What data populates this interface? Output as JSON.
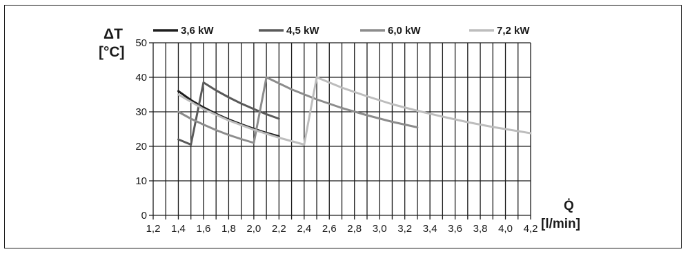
{
  "chart_data": {
    "type": "line",
    "ylabel_line1": "ΔT",
    "ylabel_line2": "[°C]",
    "xlabel_line1": "Q̇",
    "xlabel_line2": "[l/min]",
    "xlim": [
      1.2,
      4.2
    ],
    "ylim": [
      0,
      50
    ],
    "x_ticks": [
      "1,2",
      "1,4",
      "1,6",
      "1,8",
      "2,0",
      "2,2",
      "2,4",
      "2,6",
      "2,8",
      "3,0",
      "3,2",
      "3,4",
      "3,6",
      "3,8",
      "4,0",
      "4,2"
    ],
    "y_ticks": [
      "0",
      "10",
      "20",
      "30",
      "40",
      "50"
    ],
    "grid": true,
    "legend_position": "top",
    "series": [
      {
        "name": "3,6 kW",
        "color": "#1e1e1e",
        "points": [
          [
            1.4,
            36.0
          ],
          [
            1.5,
            33.4
          ],
          [
            1.6,
            31.3
          ],
          [
            1.7,
            29.4
          ],
          [
            1.8,
            27.8
          ],
          [
            1.9,
            26.4
          ],
          [
            2.0,
            25.1
          ],
          [
            2.1,
            23.9
          ],
          [
            2.2,
            22.9
          ]
        ]
      },
      {
        "name": "4,5 kW",
        "color": "#5a5a5a",
        "points": [
          [
            1.4,
            22.0
          ],
          [
            1.5,
            20.5
          ],
          [
            1.6,
            38.5
          ],
          [
            1.7,
            36.2
          ],
          [
            1.8,
            34.2
          ],
          [
            1.9,
            32.4
          ],
          [
            2.0,
            30.8
          ],
          [
            2.1,
            29.3
          ],
          [
            2.2,
            28.0
          ]
        ]
      },
      {
        "name": "6,0 kW",
        "color": "#8c8c8c",
        "points": [
          [
            1.4,
            30.0
          ],
          [
            1.5,
            28.0
          ],
          [
            1.6,
            26.3
          ],
          [
            1.7,
            24.7
          ],
          [
            1.8,
            23.3
          ],
          [
            1.9,
            22.1
          ],
          [
            2.0,
            21.0
          ],
          [
            2.1,
            40.0
          ],
          [
            2.3,
            36.5
          ],
          [
            2.5,
            33.6
          ],
          [
            2.7,
            31.1
          ],
          [
            2.9,
            29.0
          ],
          [
            3.1,
            27.1
          ],
          [
            3.3,
            25.5
          ]
        ]
      },
      {
        "name": "7,2 kW",
        "color": "#bdbdbd",
        "points": [
          [
            1.4,
            35.0
          ],
          [
            1.6,
            30.8
          ],
          [
            1.8,
            27.5
          ],
          [
            2.0,
            24.8
          ],
          [
            2.2,
            22.5
          ],
          [
            2.4,
            20.5
          ],
          [
            2.5,
            40.0
          ],
          [
            2.7,
            37.0
          ],
          [
            2.9,
            34.5
          ],
          [
            3.1,
            32.2
          ],
          [
            3.3,
            30.3
          ],
          [
            3.5,
            28.6
          ],
          [
            3.7,
            27.0
          ],
          [
            3.9,
            25.6
          ],
          [
            4.1,
            24.4
          ],
          [
            4.2,
            23.8
          ]
        ]
      }
    ]
  }
}
